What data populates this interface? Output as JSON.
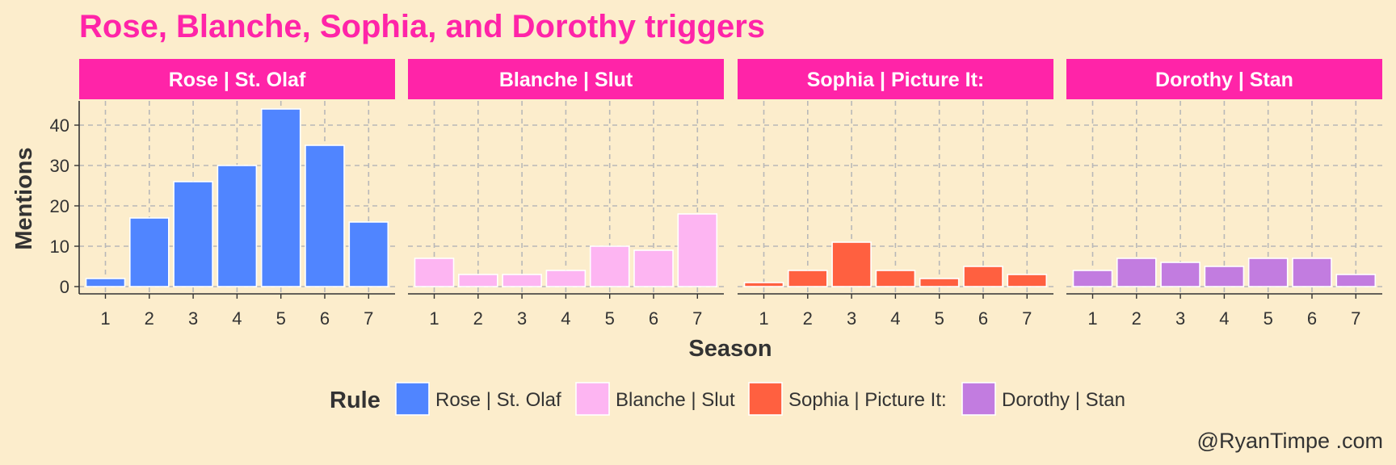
{
  "chart_data": {
    "type": "bar",
    "title": "Rose, Blanche, Sophia, and Dorothy triggers",
    "xlabel": "Season",
    "ylabel": "Mentions",
    "ylim": [
      0,
      47
    ],
    "yticks": [
      0,
      10,
      20,
      30,
      40
    ],
    "categories": [
      "1",
      "2",
      "3",
      "4",
      "5",
      "6",
      "7"
    ],
    "grid": true,
    "legend_title": "Rule",
    "legend_position": "bottom",
    "caption": "@RyanTimpe .com",
    "series": [
      {
        "name": "Rose | St. Olaf",
        "color": "#5085FF",
        "values": [
          2,
          17,
          26,
          30,
          44,
          35,
          16
        ]
      },
      {
        "name": "Blanche | Slut",
        "color": "#FDB5F2",
        "values": [
          7,
          3,
          3,
          4,
          10,
          9,
          18
        ]
      },
      {
        "name": "Sophia | Picture It:",
        "color": "#FF6040",
        "values": [
          1,
          4,
          11,
          4,
          2,
          5,
          3
        ]
      },
      {
        "name": "Dorothy | Stan",
        "color": "#C27CE0",
        "values": [
          4,
          7,
          6,
          5,
          7,
          7,
          3
        ]
      }
    ]
  },
  "colors": {
    "background": "#FCEDCC",
    "accent": "#FF24A8",
    "grid": "#B8B8B8",
    "text": "#333333"
  }
}
